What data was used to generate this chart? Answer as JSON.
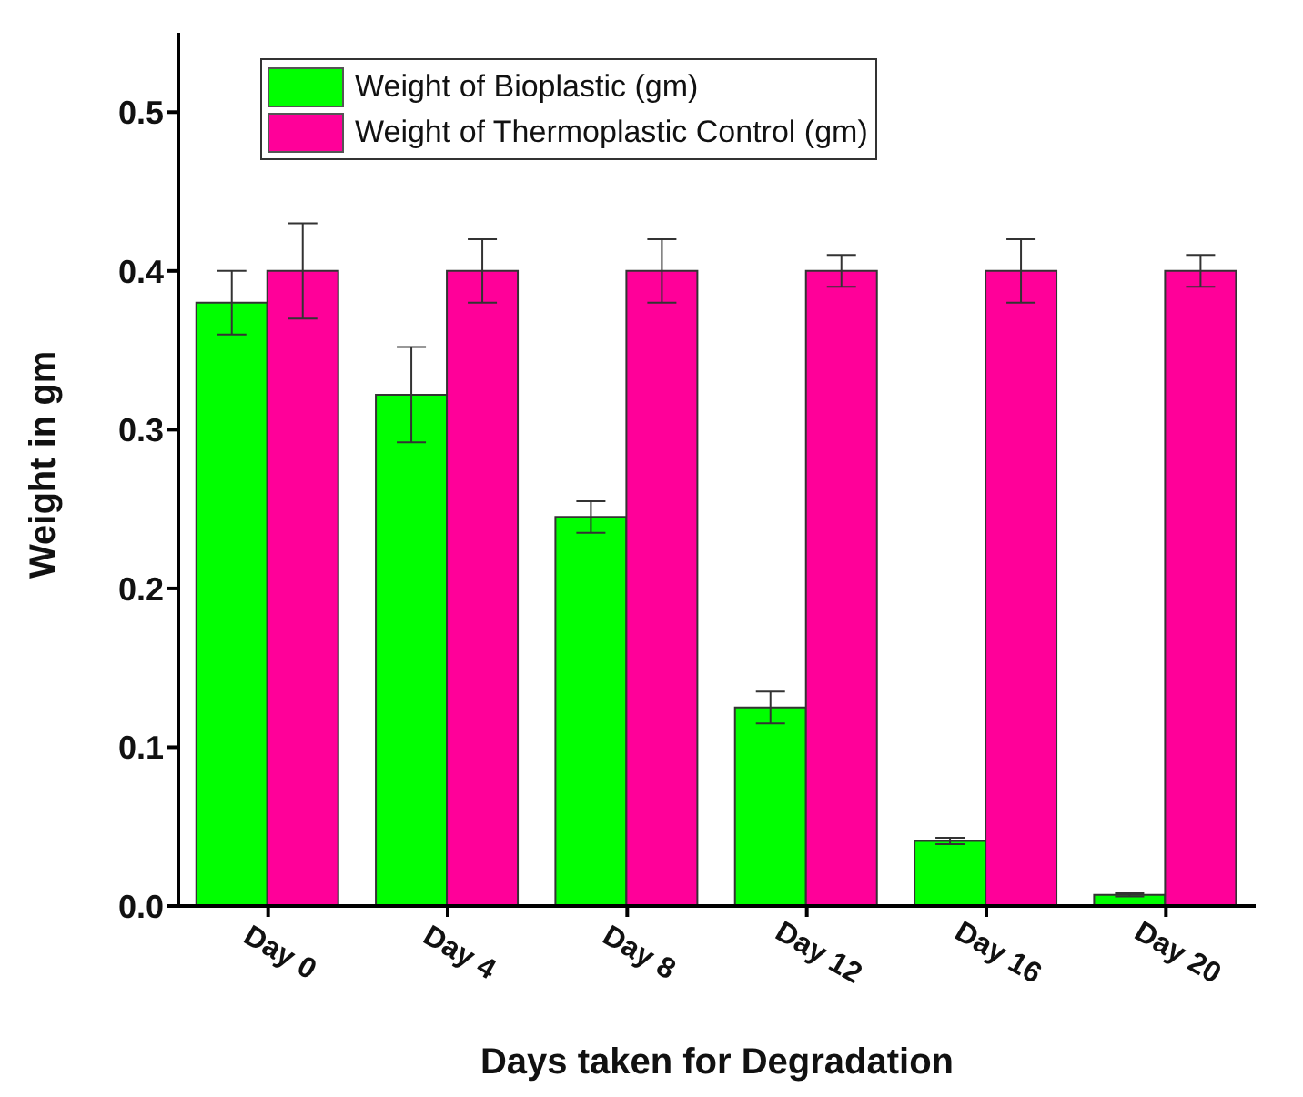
{
  "chart_data": {
    "type": "bar",
    "xlabel": "Days taken for Degradation",
    "ylabel": "Weight in gm",
    "categories": [
      "Day 0",
      "Day 4",
      "Day 8",
      "Day 12",
      "Day 16",
      "Day 20"
    ],
    "series": [
      {
        "name": "Weight of Bioplastic (gm)",
        "color": "#00ff00",
        "values": [
          0.38,
          0.322,
          0.245,
          0.125,
          0.041,
          0.007
        ],
        "errors": [
          0.02,
          0.03,
          0.01,
          0.01,
          0.002,
          0.001
        ]
      },
      {
        "name": "Weight of Thermoplastic Control (gm)",
        "color": "#ff0099",
        "values": [
          0.4,
          0.4,
          0.4,
          0.4,
          0.4,
          0.4
        ],
        "errors": [
          0.03,
          0.02,
          0.02,
          0.01,
          0.02,
          0.01
        ]
      }
    ],
    "ylim": [
      0,
      0.55
    ],
    "yticks": [
      {
        "value": 0,
        "label": "0.0"
      },
      {
        "value": 0.1,
        "label": "0.1"
      },
      {
        "value": 0.2,
        "label": "0.2"
      },
      {
        "value": 0.3,
        "label": "0.3"
      },
      {
        "value": 0.4,
        "label": "0.4"
      },
      {
        "value": 0.5,
        "label": "0.5"
      }
    ],
    "grid": false,
    "legend": "top left"
  }
}
